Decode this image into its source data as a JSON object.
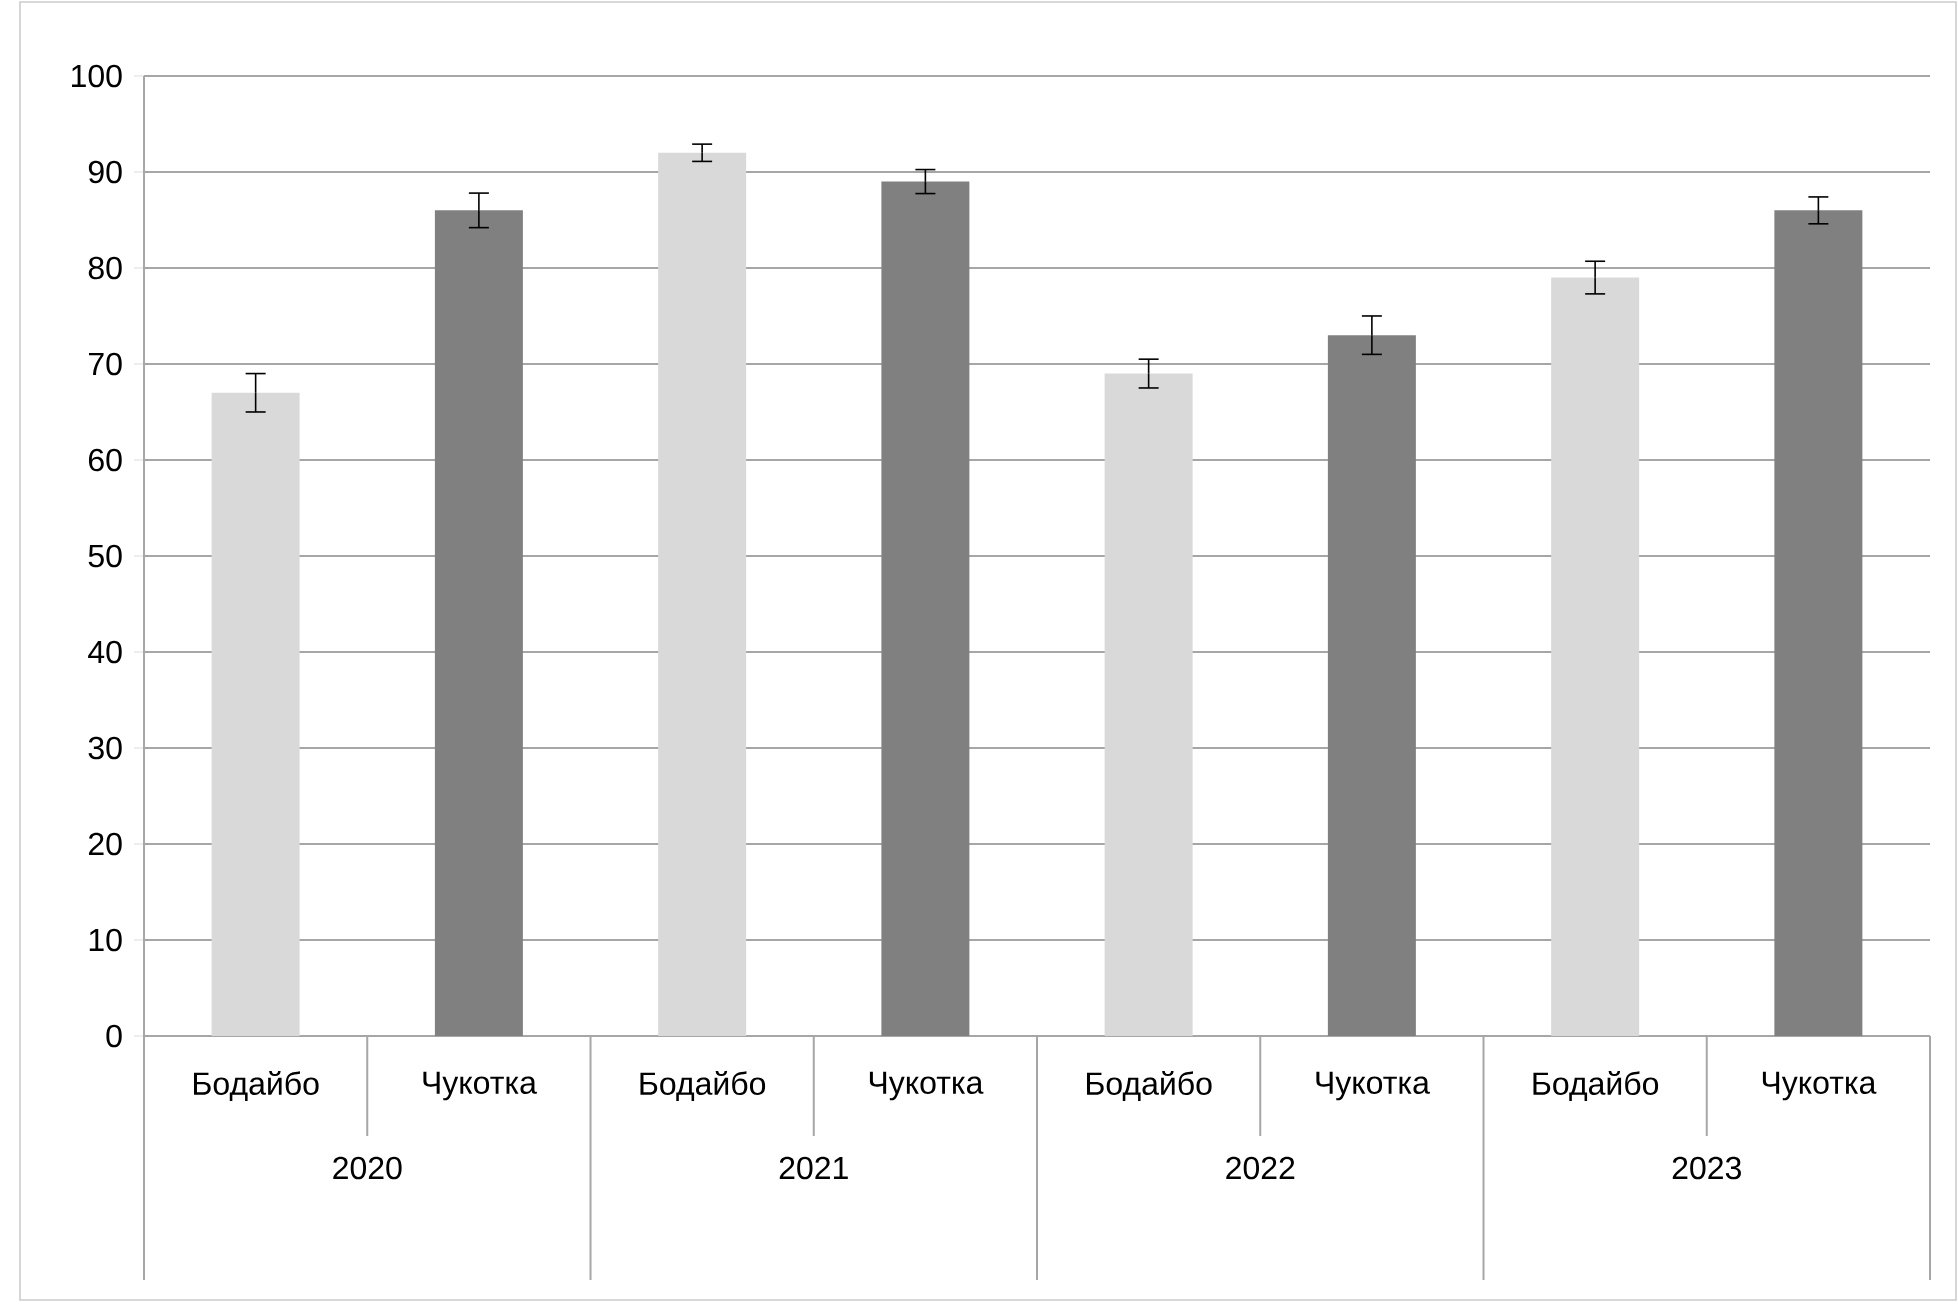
{
  "chart_data": {
    "type": "bar",
    "categories": [
      "2020",
      "2021",
      "2022",
      "2023"
    ],
    "series": [
      {
        "name": "Бодайбо",
        "color": "#d9d9d9",
        "values": [
          67,
          92,
          69,
          79
        ],
        "errors": [
          2,
          0.9,
          1.5,
          1.7
        ]
      },
      {
        "name": "Чукотка",
        "color": "#808080",
        "values": [
          86,
          89,
          73,
          86
        ],
        "errors": [
          1.8,
          1.25,
          2,
          1.4
        ]
      }
    ],
    "ylim": [
      0,
      100
    ],
    "yticks": [
      0,
      10,
      20,
      30,
      40,
      50,
      60,
      70,
      80,
      90,
      100
    ],
    "grid": "y",
    "legend": false
  }
}
